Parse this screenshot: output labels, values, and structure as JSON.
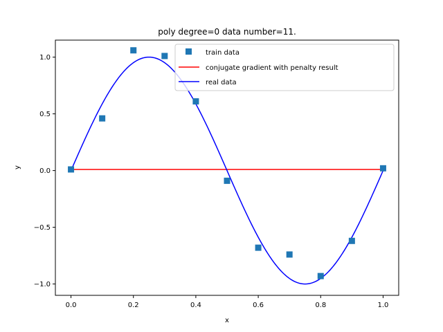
{
  "chart_data": {
    "type": "line",
    "title": "poly degree=0 data number=11.",
    "xlabel": "x",
    "ylabel": "y",
    "xlim": [
      -0.05,
      1.05
    ],
    "ylim": [
      -1.1,
      1.15
    ],
    "xticks": [
      0.0,
      0.2,
      0.4,
      0.6,
      0.8,
      1.0
    ],
    "xtick_labels": [
      "0.0",
      "0.2",
      "0.4",
      "0.6",
      "0.8",
      "1.0"
    ],
    "yticks": [
      -1.0,
      -0.5,
      0.0,
      0.5,
      1.0
    ],
    "ytick_labels": [
      "−1.0",
      "−0.5",
      "0.0",
      "0.5",
      "1.0"
    ],
    "grid": false,
    "legend_position": "top-right",
    "series": [
      {
        "name": "train data",
        "kind": "scatter",
        "marker": "square",
        "color": "#1f77b4",
        "x": [
          0.0,
          0.1,
          0.2,
          0.3,
          0.4,
          0.5,
          0.6,
          0.7,
          0.8,
          0.9,
          1.0
        ],
        "y": [
          0.01,
          0.46,
          1.06,
          1.01,
          0.61,
          -0.09,
          -0.68,
          -0.74,
          -0.93,
          -0.62,
          0.02
        ]
      },
      {
        "name": "conjugate gradient with penalty result",
        "kind": "line",
        "color": "#ff0000",
        "x": [
          0.0,
          1.0
        ],
        "y": [
          0.01,
          0.01
        ]
      },
      {
        "name": "real data",
        "kind": "line",
        "function": "sin(2*pi*x)",
        "color": "#0000ff",
        "x_range": [
          0.0,
          1.0
        ]
      }
    ]
  }
}
